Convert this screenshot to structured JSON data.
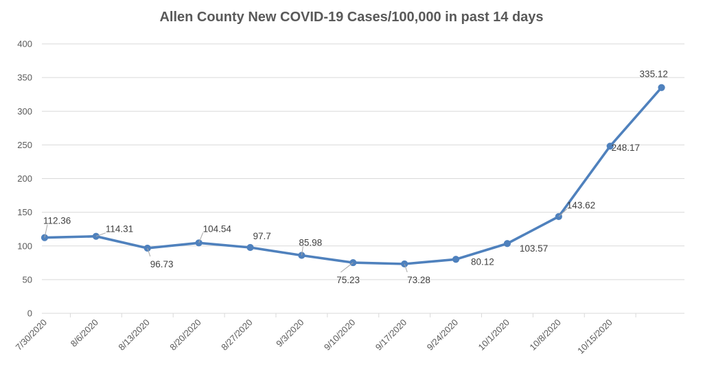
{
  "chart_data": {
    "type": "line",
    "title": "Allen County New COVID-19 Cases/100,000 in past 14 days",
    "xlabel": "",
    "ylabel": "",
    "ylim": [
      0,
      400
    ],
    "yticks": [
      0,
      50,
      100,
      150,
      200,
      250,
      300,
      350,
      400
    ],
    "grid": true,
    "legend": "none",
    "categories": [
      "7/30/2020",
      "8/6/2020",
      "8/13/2020",
      "8/20/2020",
      "8/27/2020",
      "9/3/2020",
      "9/10/2020",
      "9/17/2020",
      "9/24/2020",
      "10/1/2020",
      "10/8/2020",
      "10/15/2020",
      ""
    ],
    "series": [
      {
        "values": [
          112.36,
          114.31,
          96.73,
          104.54,
          97.7,
          85.98,
          75.23,
          73.28,
          80.12,
          103.57,
          143.62,
          248.17,
          335.12
        ],
        "labels": [
          "112.36",
          "114.31",
          "96.73",
          "104.54",
          "97.7",
          "85.98",
          "75.23",
          "73.28",
          "80.12",
          "103.57",
          "143.62",
          "248.17",
          "335.12"
        ],
        "color": "#4f81bd"
      }
    ],
    "colors": {
      "grid": "#d9d9d9",
      "axis_text": "#595959",
      "leader": "#a6a6a6"
    }
  }
}
